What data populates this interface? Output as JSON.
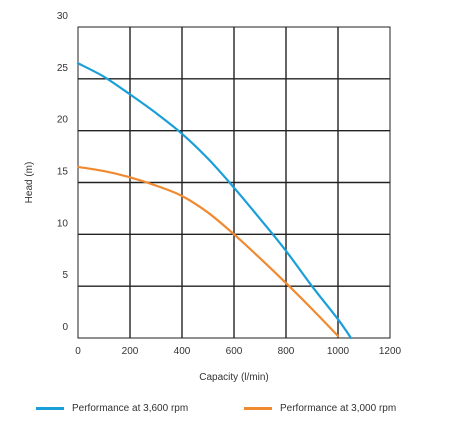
{
  "chart_data": {
    "type": "line",
    "xlabel": "Capacity (l/min)",
    "ylabel": "Head (m)",
    "xlim": [
      0,
      1200
    ],
    "ylim": [
      0,
      30
    ],
    "xticks": [
      "0",
      "200",
      "400",
      "600",
      "800",
      "1000",
      "1200"
    ],
    "yticks": [
      "0",
      "5",
      "10",
      "15",
      "20",
      "25",
      "30"
    ],
    "grid": true,
    "legend_position": "bottom",
    "series": [
      {
        "name": "Performance at 3,600 rpm",
        "color": "#1a9fd8",
        "x": [
          0,
          100,
          200,
          300,
          400,
          500,
          600,
          700,
          800,
          900,
          1000,
          1050
        ],
        "y": [
          26.5,
          25.2,
          23.5,
          21.7,
          19.7,
          17.3,
          14.5,
          11.5,
          8.4,
          5.0,
          1.8,
          0
        ]
      },
      {
        "name": "Performance at 3,000 rpm",
        "color": "#f08a30",
        "x": [
          0,
          100,
          200,
          300,
          400,
          500,
          600,
          700,
          800,
          900,
          1000
        ],
        "y": [
          16.5,
          16.1,
          15.5,
          14.7,
          13.7,
          12.1,
          10.0,
          7.7,
          5.3,
          2.8,
          0.2
        ]
      }
    ]
  }
}
